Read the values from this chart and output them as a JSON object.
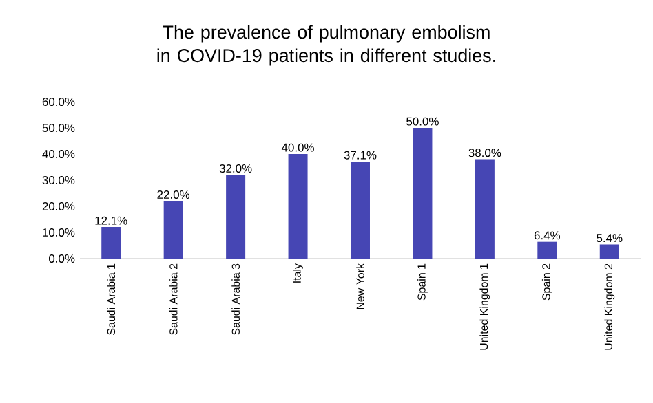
{
  "chart_data": {
    "type": "bar",
    "title": "The prevalence of pulmonary embolism in COVID-19 patients in different studies.",
    "categories": [
      "Saudi Arabia 1",
      "Saudi Arabia 2",
      "Saudi Arabia 3",
      "Italy",
      "New York",
      "Spain 1",
      "United Kingdom 1",
      "Spain 2",
      "United Kingdom 2"
    ],
    "values": [
      12.1,
      22.0,
      32.0,
      40.0,
      37.1,
      50.0,
      38.0,
      6.4,
      5.4
    ],
    "value_labels": [
      "12.1%",
      "22.0%",
      "32.0%",
      "40.0%",
      "37.1%",
      "50.0%",
      "38.0%",
      "6.4%",
      "5.4%"
    ],
    "color": "#4646b4",
    "ylim": [
      0,
      60
    ],
    "yticks": [
      {
        "value": 0,
        "label": "0.0%"
      },
      {
        "value": 10,
        "label": "10.0%"
      },
      {
        "value": 20,
        "label": "20.0%"
      },
      {
        "value": 30,
        "label": "30.0%"
      },
      {
        "value": 40,
        "label": "40.0%"
      },
      {
        "value": 50,
        "label": "50.0%"
      },
      {
        "value": 60,
        "label": "60.0%"
      }
    ],
    "grid": false
  }
}
